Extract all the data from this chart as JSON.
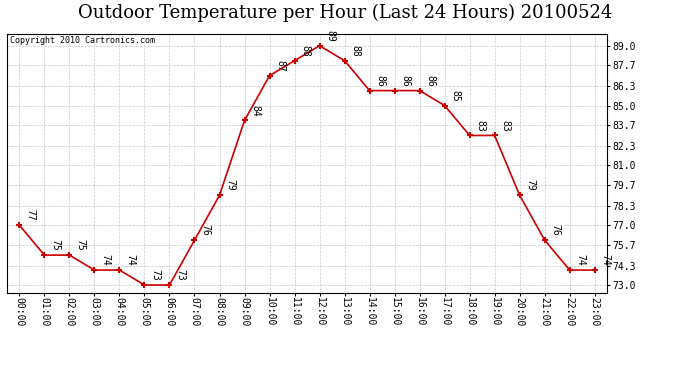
{
  "title": "Outdoor Temperature per Hour (Last 24 Hours) 20100524",
  "copyright": "Copyright 2010 Cartronics.com",
  "hours": [
    "00:00",
    "01:00",
    "02:00",
    "03:00",
    "04:00",
    "05:00",
    "06:00",
    "07:00",
    "08:00",
    "09:00",
    "10:00",
    "11:00",
    "12:00",
    "13:00",
    "14:00",
    "15:00",
    "16:00",
    "17:00",
    "18:00",
    "19:00",
    "20:00",
    "21:00",
    "22:00",
    "23:00"
  ],
  "temps": [
    77,
    75,
    75,
    74,
    74,
    73,
    73,
    76,
    79,
    84,
    87,
    88,
    89,
    88,
    86,
    86,
    86,
    85,
    83,
    83,
    79,
    76,
    74,
    74
  ],
  "line_color": "#cc0000",
  "marker_color": "#cc0000",
  "background_color": "#ffffff",
  "grid_color": "#c8c8c8",
  "yticks": [
    73.0,
    74.3,
    75.7,
    77.0,
    78.3,
    79.7,
    81.0,
    82.3,
    83.7,
    85.0,
    86.3,
    87.7,
    89.0
  ],
  "ylim": [
    72.5,
    89.8
  ],
  "title_fontsize": 13,
  "annotation_fontsize": 7,
  "tick_fontsize": 7
}
